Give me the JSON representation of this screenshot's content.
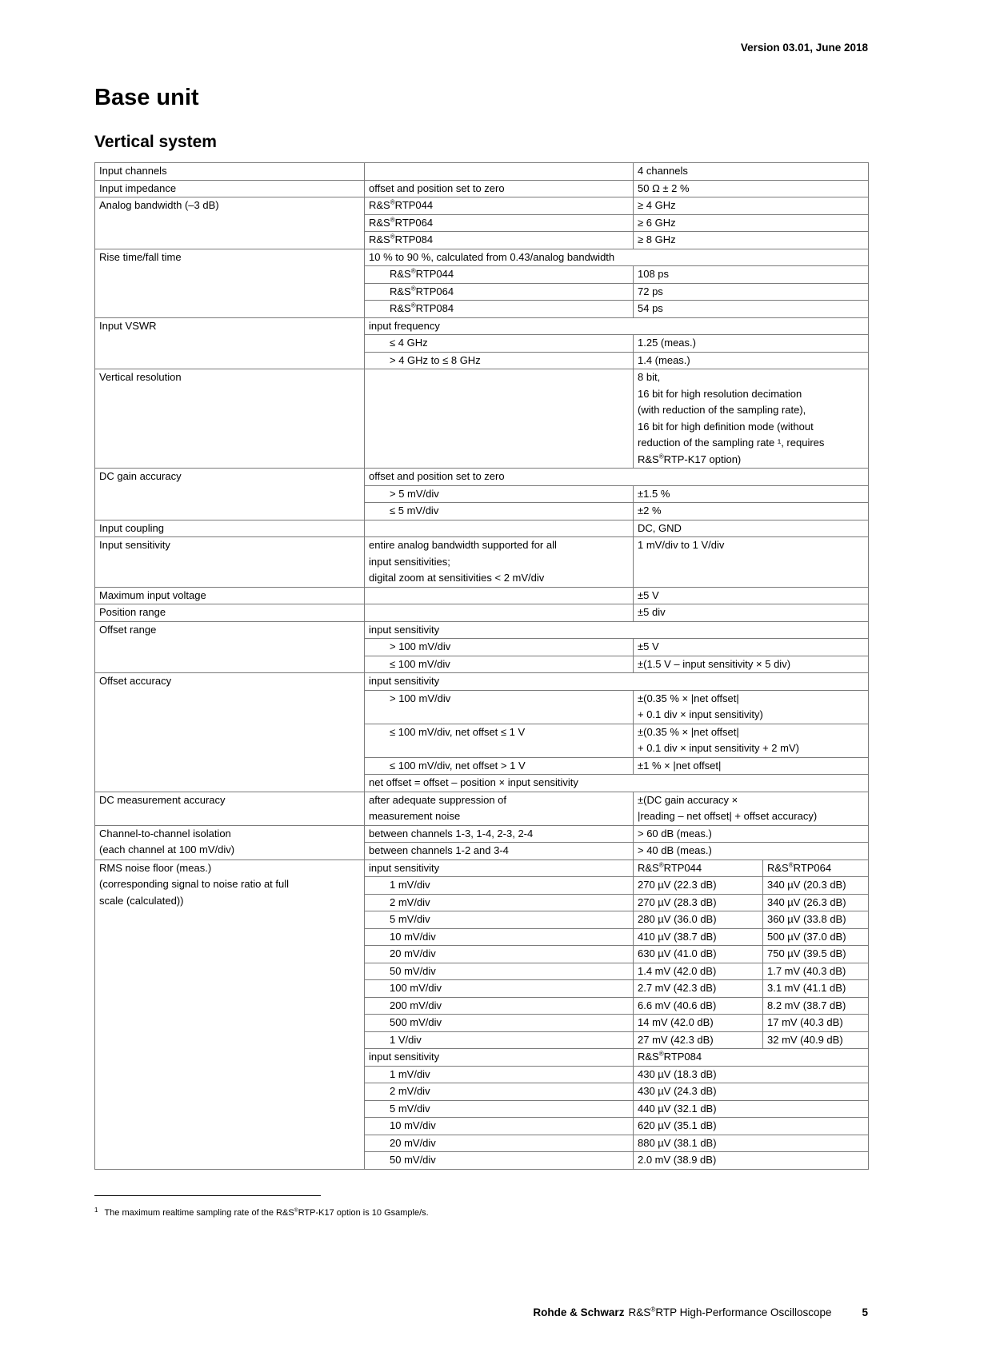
{
  "page": {
    "version_header": "Version 03.01, June 2018",
    "title": "Base unit",
    "section_title": "Vertical system"
  },
  "table": {
    "rows": [
      [
        {
          "kind": "label",
          "text": "Input channels"
        },
        {
          "kind": "cond",
          "text": ""
        },
        {
          "kind": "value",
          "text": "4 channels",
          "colspan": 2
        }
      ],
      [
        {
          "kind": "label",
          "text": "Input impedance"
        },
        {
          "kind": "cond",
          "text": "offset and position set to zero"
        },
        {
          "kind": "value",
          "text": "50 Ω ± 2 %",
          "colspan": 2
        }
      ],
      [
        {
          "kind": "label",
          "text": "Analog bandwidth (–3 dB)",
          "rowspan": 3
        },
        {
          "kind": "cond",
          "text": "R&S®RTP044"
        },
        {
          "kind": "value",
          "text": "≥ 4 GHz",
          "colspan": 2
        }
      ],
      [
        {
          "kind": "cond",
          "text": "R&S®RTP064"
        },
        {
          "kind": "value",
          "text": "≥ 6 GHz",
          "colspan": 2
        }
      ],
      [
        {
          "kind": "cond",
          "text": "R&S®RTP084"
        },
        {
          "kind": "value",
          "text": "≥ 8 GHz",
          "colspan": 2
        }
      ],
      [
        {
          "kind": "label",
          "text": "Rise time/fall time",
          "rowspan": 4
        },
        {
          "kind": "cond",
          "text": "10 % to 90 %, calculated from 0.43/analog bandwidth",
          "colspan": 3
        }
      ],
      [
        {
          "kind": "cond",
          "text": "R&S®RTP044",
          "indent": true
        },
        {
          "kind": "value",
          "text": "108 ps",
          "colspan": 2
        }
      ],
      [
        {
          "kind": "cond",
          "text": "R&S®RTP064",
          "indent": true
        },
        {
          "kind": "value",
          "text": "72 ps",
          "colspan": 2
        }
      ],
      [
        {
          "kind": "cond",
          "text": "R&S®RTP084",
          "indent": true
        },
        {
          "kind": "value",
          "text": "54 ps",
          "colspan": 2
        }
      ],
      [
        {
          "kind": "label",
          "text": "Input VSWR",
          "rowspan": 3
        },
        {
          "kind": "cond",
          "text": "input frequency",
          "colspan": 3
        }
      ],
      [
        {
          "kind": "cond",
          "text": "≤ 4 GHz",
          "indent": true
        },
        {
          "kind": "value",
          "text": "1.25 (meas.)",
          "colspan": 2
        }
      ],
      [
        {
          "kind": "cond",
          "text": "> 4 GHz to ≤ 8 GHz",
          "indent": true
        },
        {
          "kind": "value",
          "text": "1.4 (meas.)",
          "colspan": 2
        }
      ],
      [
        {
          "kind": "label",
          "text": "Vertical resolution"
        },
        {
          "kind": "cond",
          "text": ""
        },
        {
          "kind": "value",
          "lines": [
            "8 bit,",
            "16 bit for high resolution decimation",
            "(with reduction of the sampling rate),",
            "16 bit for high definition mode (without",
            "reduction of the sampling rate ¹, requires",
            "R&S®RTP-K17 option)"
          ],
          "colspan": 2
        }
      ],
      [
        {
          "kind": "label",
          "text": "DC gain accuracy",
          "rowspan": 3
        },
        {
          "kind": "cond",
          "text": "offset and position set to zero",
          "colspan": 3
        }
      ],
      [
        {
          "kind": "cond",
          "text": "> 5 mV/div",
          "indent": true
        },
        {
          "kind": "value",
          "text": "±1.5 %",
          "colspan": 2
        }
      ],
      [
        {
          "kind": "cond",
          "text": "≤ 5 mV/div",
          "indent": true
        },
        {
          "kind": "value",
          "text": "±2 %",
          "colspan": 2
        }
      ],
      [
        {
          "kind": "label",
          "text": "Input coupling"
        },
        {
          "kind": "cond",
          "text": ""
        },
        {
          "kind": "value",
          "text": "DC, GND",
          "colspan": 2
        }
      ],
      [
        {
          "kind": "label",
          "text": "Input sensitivity"
        },
        {
          "kind": "cond",
          "lines": [
            "entire analog bandwidth supported for all",
            "input sensitivities;",
            "digital zoom at sensitivities < 2 mV/div"
          ]
        },
        {
          "kind": "value",
          "text": "1 mV/div to 1 V/div",
          "colspan": 2
        }
      ],
      [
        {
          "kind": "label",
          "text": "Maximum input voltage"
        },
        {
          "kind": "cond",
          "text": ""
        },
        {
          "kind": "value",
          "text": "±5 V",
          "colspan": 2
        }
      ],
      [
        {
          "kind": "label",
          "text": "Position range"
        },
        {
          "kind": "cond",
          "text": ""
        },
        {
          "kind": "value",
          "text": "±5 div",
          "colspan": 2
        }
      ],
      [
        {
          "kind": "label",
          "text": "Offset range",
          "rowspan": 3
        },
        {
          "kind": "cond",
          "text": "input sensitivity",
          "colspan": 3
        }
      ],
      [
        {
          "kind": "cond",
          "text": "> 100 mV/div",
          "indent": true
        },
        {
          "kind": "value",
          "text": "±5 V",
          "colspan": 2
        }
      ],
      [
        {
          "kind": "cond",
          "text": "≤ 100 mV/div",
          "indent": true
        },
        {
          "kind": "value",
          "text": "±(1.5 V – input sensitivity × 5 div)",
          "colspan": 2
        }
      ],
      [
        {
          "kind": "label",
          "text": "Offset accuracy",
          "rowspan": 5
        },
        {
          "kind": "cond",
          "text": "input sensitivity",
          "colspan": 3
        }
      ],
      [
        {
          "kind": "cond",
          "text": "> 100 mV/div",
          "indent": true
        },
        {
          "kind": "value",
          "lines": [
            "±(0.35 % × |net offset|",
            "+ 0.1 div × input sensitivity)"
          ],
          "colspan": 2
        }
      ],
      [
        {
          "kind": "cond",
          "text": "≤ 100 mV/div, net offset ≤ 1 V",
          "indent": true
        },
        {
          "kind": "value",
          "lines": [
            "±(0.35 % × |net offset|",
            "+ 0.1 div × input sensitivity + 2 mV)"
          ],
          "colspan": 2
        }
      ],
      [
        {
          "kind": "cond",
          "text": "≤ 100 mV/div, net offset > 1 V",
          "indent": true
        },
        {
          "kind": "value",
          "text": "±1 % × |net offset|",
          "colspan": 2
        }
      ],
      [
        {
          "kind": "cond",
          "text": "net offset = offset – position × input sensitivity",
          "colspan": 3
        }
      ],
      [
        {
          "kind": "label",
          "text": "DC measurement accuracy"
        },
        {
          "kind": "cond",
          "lines": [
            "after adequate suppression of",
            "measurement noise"
          ]
        },
        {
          "kind": "value",
          "lines": [
            "±(DC gain accuracy ×",
            "|reading – net offset| + offset accuracy)"
          ],
          "colspan": 2
        }
      ],
      [
        {
          "kind": "label",
          "lines": [
            "Channel-to-channel isolation",
            "(each channel at 100 mV/div)"
          ],
          "rowspan": 2
        },
        {
          "kind": "cond",
          "text": "between channels 1-3, 1-4, 2-3, 2-4"
        },
        {
          "kind": "value",
          "text": "> 60 dB (meas.)",
          "colspan": 2
        }
      ],
      [
        {
          "kind": "cond",
          "text": "between channels 1-2 and 3-4"
        },
        {
          "kind": "value",
          "text": "> 40 dB (meas.)",
          "colspan": 2
        }
      ],
      [
        {
          "kind": "label",
          "lines": [
            "RMS noise floor (meas.)",
            "(corresponding signal to noise ratio at full",
            "scale (calculated))"
          ],
          "rowspan": 18
        },
        {
          "kind": "cond",
          "text": "input sensitivity"
        },
        {
          "kind": "value",
          "text": "R&S®RTP044"
        },
        {
          "kind": "value",
          "text": "R&S®RTP064"
        }
      ],
      [
        {
          "kind": "cond",
          "text": "1 mV/div",
          "indent": true
        },
        {
          "kind": "value",
          "text": "270 µV (22.3 dB)"
        },
        {
          "kind": "value",
          "text": "340 µV (20.3 dB)"
        }
      ],
      [
        {
          "kind": "cond",
          "text": "2 mV/div",
          "indent": true
        },
        {
          "kind": "value",
          "text": "270 µV (28.3 dB)"
        },
        {
          "kind": "value",
          "text": "340 µV (26.3 dB)"
        }
      ],
      [
        {
          "kind": "cond",
          "text": "5 mV/div",
          "indent": true
        },
        {
          "kind": "value",
          "text": "280 µV (36.0 dB)"
        },
        {
          "kind": "value",
          "text": "360 µV (33.8 dB)"
        }
      ],
      [
        {
          "kind": "cond",
          "text": "10 mV/div",
          "indent": true
        },
        {
          "kind": "value",
          "text": "410 µV (38.7 dB)"
        },
        {
          "kind": "value",
          "text": "500 µV (37.0 dB)"
        }
      ],
      [
        {
          "kind": "cond",
          "text": "20 mV/div",
          "indent": true
        },
        {
          "kind": "value",
          "text": "630 µV (41.0 dB)"
        },
        {
          "kind": "value",
          "text": "750 µV (39.5 dB)"
        }
      ],
      [
        {
          "kind": "cond",
          "text": "50 mV/div",
          "indent": true
        },
        {
          "kind": "value",
          "text": "1.4 mV (42.0 dB)"
        },
        {
          "kind": "value",
          "text": "1.7 mV (40.3 dB)"
        }
      ],
      [
        {
          "kind": "cond",
          "text": "100 mV/div",
          "indent": true
        },
        {
          "kind": "value",
          "text": "2.7 mV (42.3 dB)"
        },
        {
          "kind": "value",
          "text": "3.1 mV (41.1 dB)"
        }
      ],
      [
        {
          "kind": "cond",
          "text": "200 mV/div",
          "indent": true
        },
        {
          "kind": "value",
          "text": "6.6 mV (40.6 dB)"
        },
        {
          "kind": "value",
          "text": "8.2 mV (38.7 dB)"
        }
      ],
      [
        {
          "kind": "cond",
          "text": "500 mV/div",
          "indent": true
        },
        {
          "kind": "value",
          "text": "14 mV (42.0 dB)"
        },
        {
          "kind": "value",
          "text": "17 mV (40.3 dB)"
        }
      ],
      [
        {
          "kind": "cond",
          "text": "1 V/div",
          "indent": true
        },
        {
          "kind": "value",
          "text": "27 mV (42.3 dB)"
        },
        {
          "kind": "value",
          "text": "32 mV (40.9 dB)"
        }
      ],
      [
        {
          "kind": "cond",
          "text": "input sensitivity"
        },
        {
          "kind": "value",
          "text": "R&S®RTP084",
          "colspan": 2
        }
      ],
      [
        {
          "kind": "cond",
          "text": "1 mV/div",
          "indent": true
        },
        {
          "kind": "value",
          "text": "430 µV (18.3 dB)",
          "colspan": 2
        }
      ],
      [
        {
          "kind": "cond",
          "text": "2 mV/div",
          "indent": true
        },
        {
          "kind": "value",
          "text": "430 µV (24.3 dB)",
          "colspan": 2
        }
      ],
      [
        {
          "kind": "cond",
          "text": "5 mV/div",
          "indent": true
        },
        {
          "kind": "value",
          "text": "440 µV (32.1 dB)",
          "colspan": 2
        }
      ],
      [
        {
          "kind": "cond",
          "text": "10 mV/div",
          "indent": true
        },
        {
          "kind": "value",
          "text": "620 µV (35.1 dB)",
          "colspan": 2
        }
      ],
      [
        {
          "kind": "cond",
          "text": "20 mV/div",
          "indent": true
        },
        {
          "kind": "value",
          "text": "880 µV (38.1 dB)",
          "colspan": 2
        }
      ],
      [
        {
          "kind": "cond",
          "text": "50 mV/div",
          "indent": true
        },
        {
          "kind": "value",
          "text": "2.0 mV (38.9 dB)",
          "colspan": 2
        }
      ]
    ]
  },
  "footnote": {
    "marker": "1",
    "text": "The maximum realtime sampling rate of the R&S®RTP-K17 option is 10 Gsample/s."
  },
  "footer": {
    "brand": "Rohde & Schwarz",
    "product": "R&S®RTP High-Performance Oscilloscope",
    "page_number": "5"
  },
  "colors": {
    "border": "#7b7b7b",
    "text": "#000000",
    "background": "#ffffff"
  }
}
